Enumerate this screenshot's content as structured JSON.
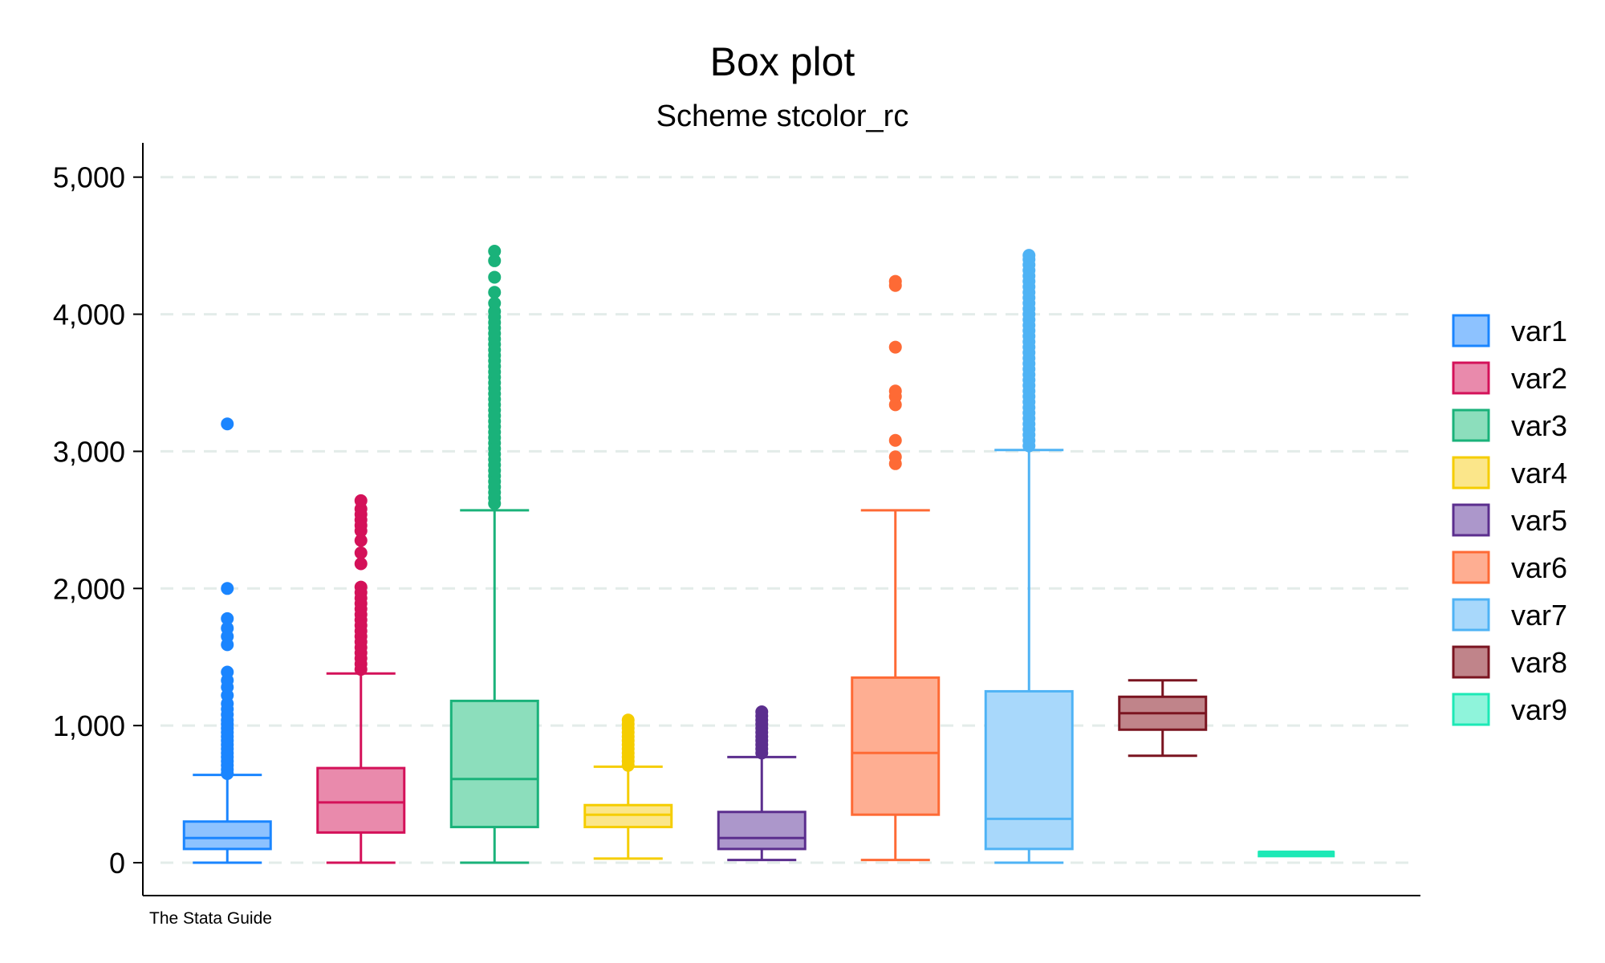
{
  "chart_data": {
    "type": "box",
    "title": "Box plot",
    "subtitle": "Scheme stcolor_rc",
    "note": "The Stata Guide",
    "xlabel": "",
    "ylabel": "",
    "ylim": [
      -240,
      5250
    ],
    "yticks": [
      {
        "value": 0,
        "label": "0"
      },
      {
        "value": 1000,
        "label": "1,000"
      },
      {
        "value": 2000,
        "label": "2,000"
      },
      {
        "value": 3000,
        "label": "3,000"
      },
      {
        "value": 4000,
        "label": "4,000"
      },
      {
        "value": 5000,
        "label": "5,000"
      }
    ],
    "grid": true,
    "legend_position": "right",
    "series": [
      {
        "name": "var1",
        "color": "#1a85ff",
        "fill": "#8dc2ff",
        "whisker_low": 0,
        "q1": 100,
        "median": 180,
        "q3": 300,
        "whisker_high": 640,
        "outliers": [
          650,
          680,
          710,
          740,
          770,
          800,
          830,
          860,
          890,
          920,
          950,
          980,
          1010,
          1040,
          1080,
          1120,
          1160,
          1220,
          1280,
          1330,
          1390,
          1590,
          1650,
          1710,
          1780,
          2000,
          3200
        ]
      },
      {
        "name": "var2",
        "color": "#d41159",
        "fill": "#e98aac",
        "whisker_low": 0,
        "q1": 220,
        "median": 440,
        "q3": 690,
        "whisker_high": 1380,
        "outliers": [
          1410,
          1450,
          1490,
          1530,
          1570,
          1610,
          1650,
          1690,
          1730,
          1770,
          1810,
          1850,
          1890,
          1930,
          1970,
          2010,
          2180,
          2260,
          2350,
          2420,
          2460,
          2500,
          2540,
          2580,
          2640
        ]
      },
      {
        "name": "var3",
        "color": "#1ab27a",
        "fill": "#8cdebc",
        "whisker_low": 0,
        "q1": 260,
        "median": 610,
        "q3": 1180,
        "whisker_high": 2570,
        "outliers": [
          2620,
          2660,
          2700,
          2740,
          2780,
          2820,
          2860,
          2900,
          2940,
          2980,
          3020,
          3060,
          3100,
          3140,
          3180,
          3220,
          3260,
          3300,
          3340,
          3380,
          3420,
          3460,
          3500,
          3540,
          3580,
          3620,
          3660,
          3700,
          3740,
          3780,
          3820,
          3860,
          3900,
          3940,
          3980,
          4020,
          4080,
          4160,
          4270,
          4390,
          4460
        ]
      },
      {
        "name": "var4",
        "color": "#f5cd00",
        "fill": "#fbe68a",
        "whisker_low": 30,
        "q1": 260,
        "median": 350,
        "q3": 420,
        "whisker_high": 700,
        "outliers": [
          710,
          740,
          770,
          800,
          830,
          860,
          890,
          920,
          950,
          980,
          1010,
          1040
        ]
      },
      {
        "name": "var5",
        "color": "#5b2e8e",
        "fill": "#ac97cb",
        "whisker_low": 20,
        "q1": 100,
        "median": 180,
        "q3": 370,
        "whisker_high": 770,
        "outliers": [
          800,
          830,
          860,
          890,
          920,
          950,
          980,
          1010,
          1040,
          1070,
          1100
        ]
      },
      {
        "name": "var6",
        "color": "#fe6a35",
        "fill": "#feae92",
        "whisker_low": 20,
        "q1": 350,
        "median": 800,
        "q3": 1350,
        "whisker_high": 2570,
        "outliers": [
          2910,
          2960,
          3080,
          3340,
          3400,
          3440,
          3760,
          4210,
          4240
        ]
      },
      {
        "name": "var7",
        "color": "#4fb3f5",
        "fill": "#a8d8fb",
        "whisker_low": 0,
        "q1": 100,
        "median": 320,
        "q3": 1250,
        "whisker_high": 3010,
        "outliers": [
          3040,
          3080,
          3120,
          3160,
          3200,
          3240,
          3280,
          3320,
          3360,
          3400,
          3440,
          3480,
          3520,
          3560,
          3600,
          3640,
          3680,
          3720,
          3760,
          3800,
          3840,
          3880,
          3920,
          3960,
          4000,
          4040,
          4080,
          4120,
          4160,
          4200,
          4240,
          4280,
          4320,
          4360,
          4400,
          4430
        ]
      },
      {
        "name": "var8",
        "color": "#7a1420",
        "fill": "#c0848a",
        "whisker_low": 780,
        "q1": 970,
        "median": 1090,
        "q3": 1210,
        "whisker_high": 1330,
        "outliers": []
      },
      {
        "name": "var9",
        "color": "#1de9b6",
        "fill": "#8ff4db",
        "whisker_low": 60,
        "q1": 60,
        "median": 70,
        "q3": 80,
        "whisker_high": 80,
        "outliers": []
      }
    ]
  }
}
